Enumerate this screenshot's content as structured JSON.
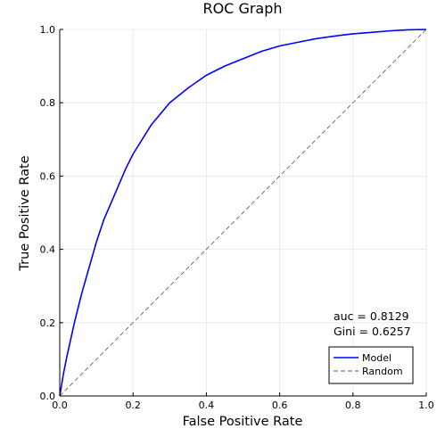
{
  "chart_data": {
    "type": "line",
    "title": "ROC Graph",
    "xlabel": "False Positive Rate",
    "ylabel": "True Positive Rate",
    "xlim": [
      0,
      1
    ],
    "ylim": [
      0,
      1
    ],
    "x_ticks": [
      "0.0",
      "0.2",
      "0.4",
      "0.6",
      "0.8",
      "1.0"
    ],
    "y_ticks": [
      "0.0",
      "0.2",
      "0.4",
      "0.6",
      "0.8",
      "1.0"
    ],
    "grid": true,
    "legend_position": "bottom-right",
    "series": [
      {
        "name": "Model",
        "color": "#0000ff",
        "style": "solid",
        "x": [
          0,
          0.01,
          0.02,
          0.04,
          0.06,
          0.08,
          0.1,
          0.12,
          0.15,
          0.18,
          0.2,
          0.25,
          0.3,
          0.35,
          0.4,
          0.45,
          0.5,
          0.55,
          0.6,
          0.65,
          0.7,
          0.75,
          0.8,
          0.85,
          0.9,
          0.95,
          1.0
        ],
        "y": [
          0,
          0.06,
          0.11,
          0.2,
          0.28,
          0.35,
          0.42,
          0.48,
          0.55,
          0.62,
          0.66,
          0.74,
          0.8,
          0.84,
          0.875,
          0.9,
          0.92,
          0.94,
          0.955,
          0.965,
          0.975,
          0.982,
          0.988,
          0.992,
          0.996,
          0.999,
          1.0
        ]
      },
      {
        "name": "Random",
        "color": "#555555",
        "style": "dashed",
        "x": [
          0,
          1
        ],
        "y": [
          0,
          1
        ]
      }
    ],
    "annotations": [
      "auc = 0.8129",
      "Gini = 0.6257"
    ]
  }
}
